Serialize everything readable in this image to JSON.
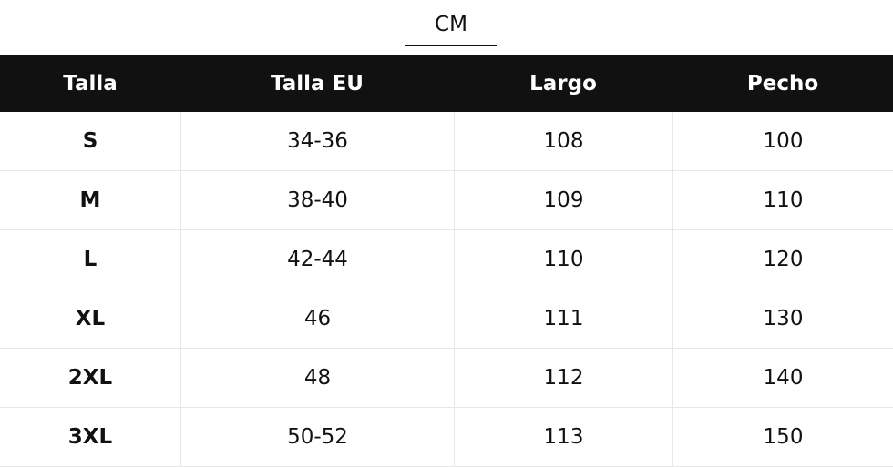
{
  "tab": {
    "label": "CM"
  },
  "table": {
    "header": [
      "Talla",
      "Talla EU",
      "Largo",
      "Pecho"
    ],
    "rows": [
      [
        "S",
        "34-36",
        "108",
        "100"
      ],
      [
        "M",
        "38-40",
        "109",
        "110"
      ],
      [
        "L",
        "42-44",
        "110",
        "120"
      ],
      [
        "XL",
        "46",
        "111",
        "130"
      ],
      [
        "2XL",
        "48",
        "112",
        "140"
      ],
      [
        "3XL",
        "50-52",
        "113",
        "150"
      ]
    ]
  }
}
